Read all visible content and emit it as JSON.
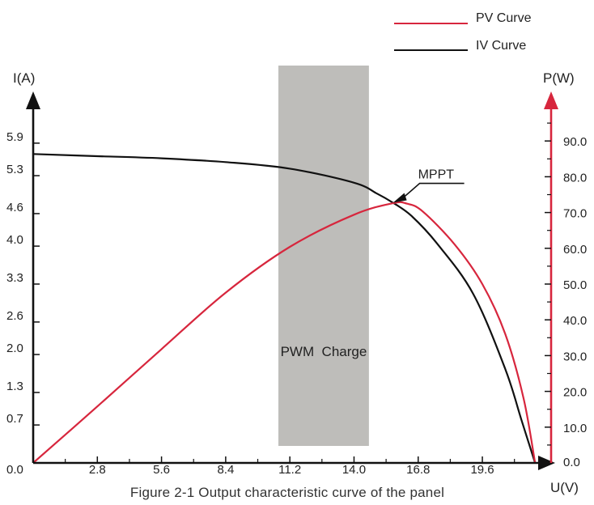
{
  "chart_data": {
    "type": "line",
    "caption": "Figure 2-1 Output characteristic curve of the panel",
    "x_axis": {
      "label": "U(V)",
      "tick_labels": [
        "0.0",
        "2.8",
        "5.6",
        "8.4",
        "11.2",
        "14.0",
        "16.8",
        "19.6"
      ],
      "ticks": [
        0,
        2.8,
        5.6,
        8.4,
        11.2,
        14.0,
        16.8,
        19.6
      ],
      "range": [
        0,
        22.6
      ]
    },
    "y_left": {
      "label": "I(A)",
      "tick_labels": [
        "0.7",
        "1.3",
        "2.0",
        "2.6",
        "3.3",
        "4.0",
        "4.6",
        "5.3",
        "5.9"
      ],
      "ticks": [
        0.7,
        1.3,
        2.0,
        2.6,
        3.3,
        4.0,
        4.6,
        5.3,
        5.9
      ],
      "range": [
        0,
        6.6
      ],
      "color": "#111111"
    },
    "y_right": {
      "label": "P(W)",
      "tick_labels": [
        "0.0",
        "10.0",
        "20.0",
        "30.0",
        "40.0",
        "50.0",
        "60.0",
        "70.0",
        "80.0",
        "90.0"
      ],
      "ticks": [
        0,
        10,
        20,
        30,
        40,
        50,
        60,
        70,
        80,
        90
      ],
      "range": [
        0,
        100
      ],
      "color": "#d7263d"
    },
    "series": [
      {
        "name": "PV Curve",
        "axis": "right",
        "color": "#d7263d",
        "points": [
          [
            0,
            0
          ],
          [
            2.8,
            15.8
          ],
          [
            5.6,
            31.8
          ],
          [
            8.4,
            47.6
          ],
          [
            11.2,
            60.4
          ],
          [
            14.0,
            69.4
          ],
          [
            15.7,
            72.6
          ],
          [
            16.3,
            72.5
          ],
          [
            17.0,
            70.3
          ],
          [
            18.4,
            61.0
          ],
          [
            19.6,
            50.0
          ],
          [
            20.6,
            36.0
          ],
          [
            21.4,
            18.0
          ],
          [
            21.9,
            0
          ]
        ]
      },
      {
        "name": "IV Curve",
        "axis": "left",
        "color": "#111111",
        "points": [
          [
            0,
            5.7
          ],
          [
            2.8,
            5.66
          ],
          [
            5.6,
            5.62
          ],
          [
            8.4,
            5.55
          ],
          [
            11.2,
            5.43
          ],
          [
            14.0,
            5.17
          ],
          [
            15.0,
            4.97
          ],
          [
            15.7,
            4.8
          ],
          [
            16.5,
            4.56
          ],
          [
            17.6,
            4.06
          ],
          [
            19.2,
            3.12
          ],
          [
            20.6,
            1.73
          ],
          [
            21.3,
            0.8
          ],
          [
            21.9,
            0
          ]
        ]
      }
    ],
    "regions": [
      {
        "label": "PWM  Charge",
        "x_range": [
          10.7,
          14.65
        ],
        "color": "#bebdba"
      }
    ],
    "annotations": [
      {
        "label": "MPPT",
        "x": 15.7,
        "y_left": 4.8
      }
    ],
    "legend": {
      "position": "top-right"
    }
  }
}
